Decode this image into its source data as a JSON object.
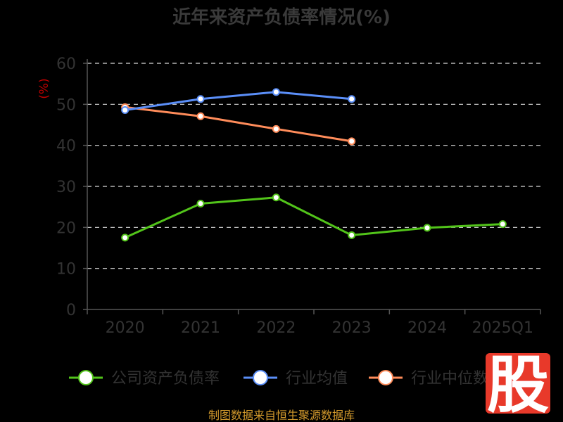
{
  "chart_data": {
    "type": "line",
    "title": "近年来资产负债率情况(%)",
    "ylabel": "(%)",
    "ylim": [
      0,
      60
    ],
    "yticks": [
      0,
      10,
      20,
      30,
      40,
      50,
      60
    ],
    "categories": [
      "2020",
      "2021",
      "2022",
      "2023",
      "2024",
      "2025Q1"
    ],
    "grid": true,
    "legend_position": "bottom",
    "series": [
      {
        "name": "公司资产负债率",
        "color": "#52c41a",
        "values": [
          17.5,
          25.8,
          27.3,
          18.1,
          19.9,
          20.8
        ]
      },
      {
        "name": "行业均值",
        "color": "#5b8ff9",
        "values": [
          48.6,
          51.3,
          53.0,
          51.3,
          null,
          null
        ]
      },
      {
        "name": "行业中位数",
        "color": "#ff8c5a",
        "values": [
          49.3,
          47.1,
          44.0,
          41.0,
          null,
          null
        ]
      }
    ]
  },
  "source_text": "制图数据来自恒生聚源数据库",
  "watermark_text": "股"
}
